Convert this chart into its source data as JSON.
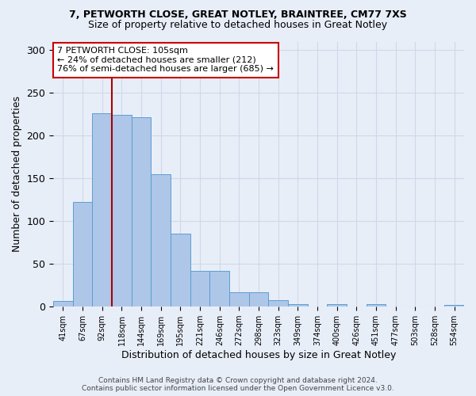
{
  "title_line1": "7, PETWORTH CLOSE, GREAT NOTLEY, BRAINTREE, CM77 7XS",
  "title_line2": "Size of property relative to detached houses in Great Notley",
  "xlabel": "Distribution of detached houses by size in Great Notley",
  "ylabel": "Number of detached properties",
  "bin_labels": [
    "41sqm",
    "67sqm",
    "92sqm",
    "118sqm",
    "144sqm",
    "169sqm",
    "195sqm",
    "221sqm",
    "246sqm",
    "272sqm",
    "298sqm",
    "323sqm",
    "349sqm",
    "374sqm",
    "400sqm",
    "426sqm",
    "451sqm",
    "477sqm",
    "503sqm",
    "528sqm",
    "554sqm"
  ],
  "bar_heights": [
    7,
    122,
    226,
    224,
    222,
    155,
    85,
    42,
    42,
    17,
    17,
    8,
    3,
    0,
    3,
    0,
    3,
    0,
    0,
    0,
    2
  ],
  "bar_color": "#aec6e8",
  "bar_edge_color": "#5a9fd4",
  "ylim": [
    0,
    310
  ],
  "yticks": [
    0,
    50,
    100,
    150,
    200,
    250,
    300
  ],
  "annotation_line1": "7 PETWORTH CLOSE: 105sqm",
  "annotation_line2": "← 24% of detached houses are smaller (212)",
  "annotation_line3": "76% of semi-detached houses are larger (685) →",
  "vline_x": 2.5,
  "vline_color": "#aa0000",
  "annotation_box_color": "#ffffff",
  "annotation_box_edge_color": "#cc0000",
  "footer_line1": "Contains HM Land Registry data © Crown copyright and database right 2024.",
  "footer_line2": "Contains public sector information licensed under the Open Government Licence v3.0.",
  "background_color": "#e8eef8",
  "grid_color": "#d0d8e8"
}
